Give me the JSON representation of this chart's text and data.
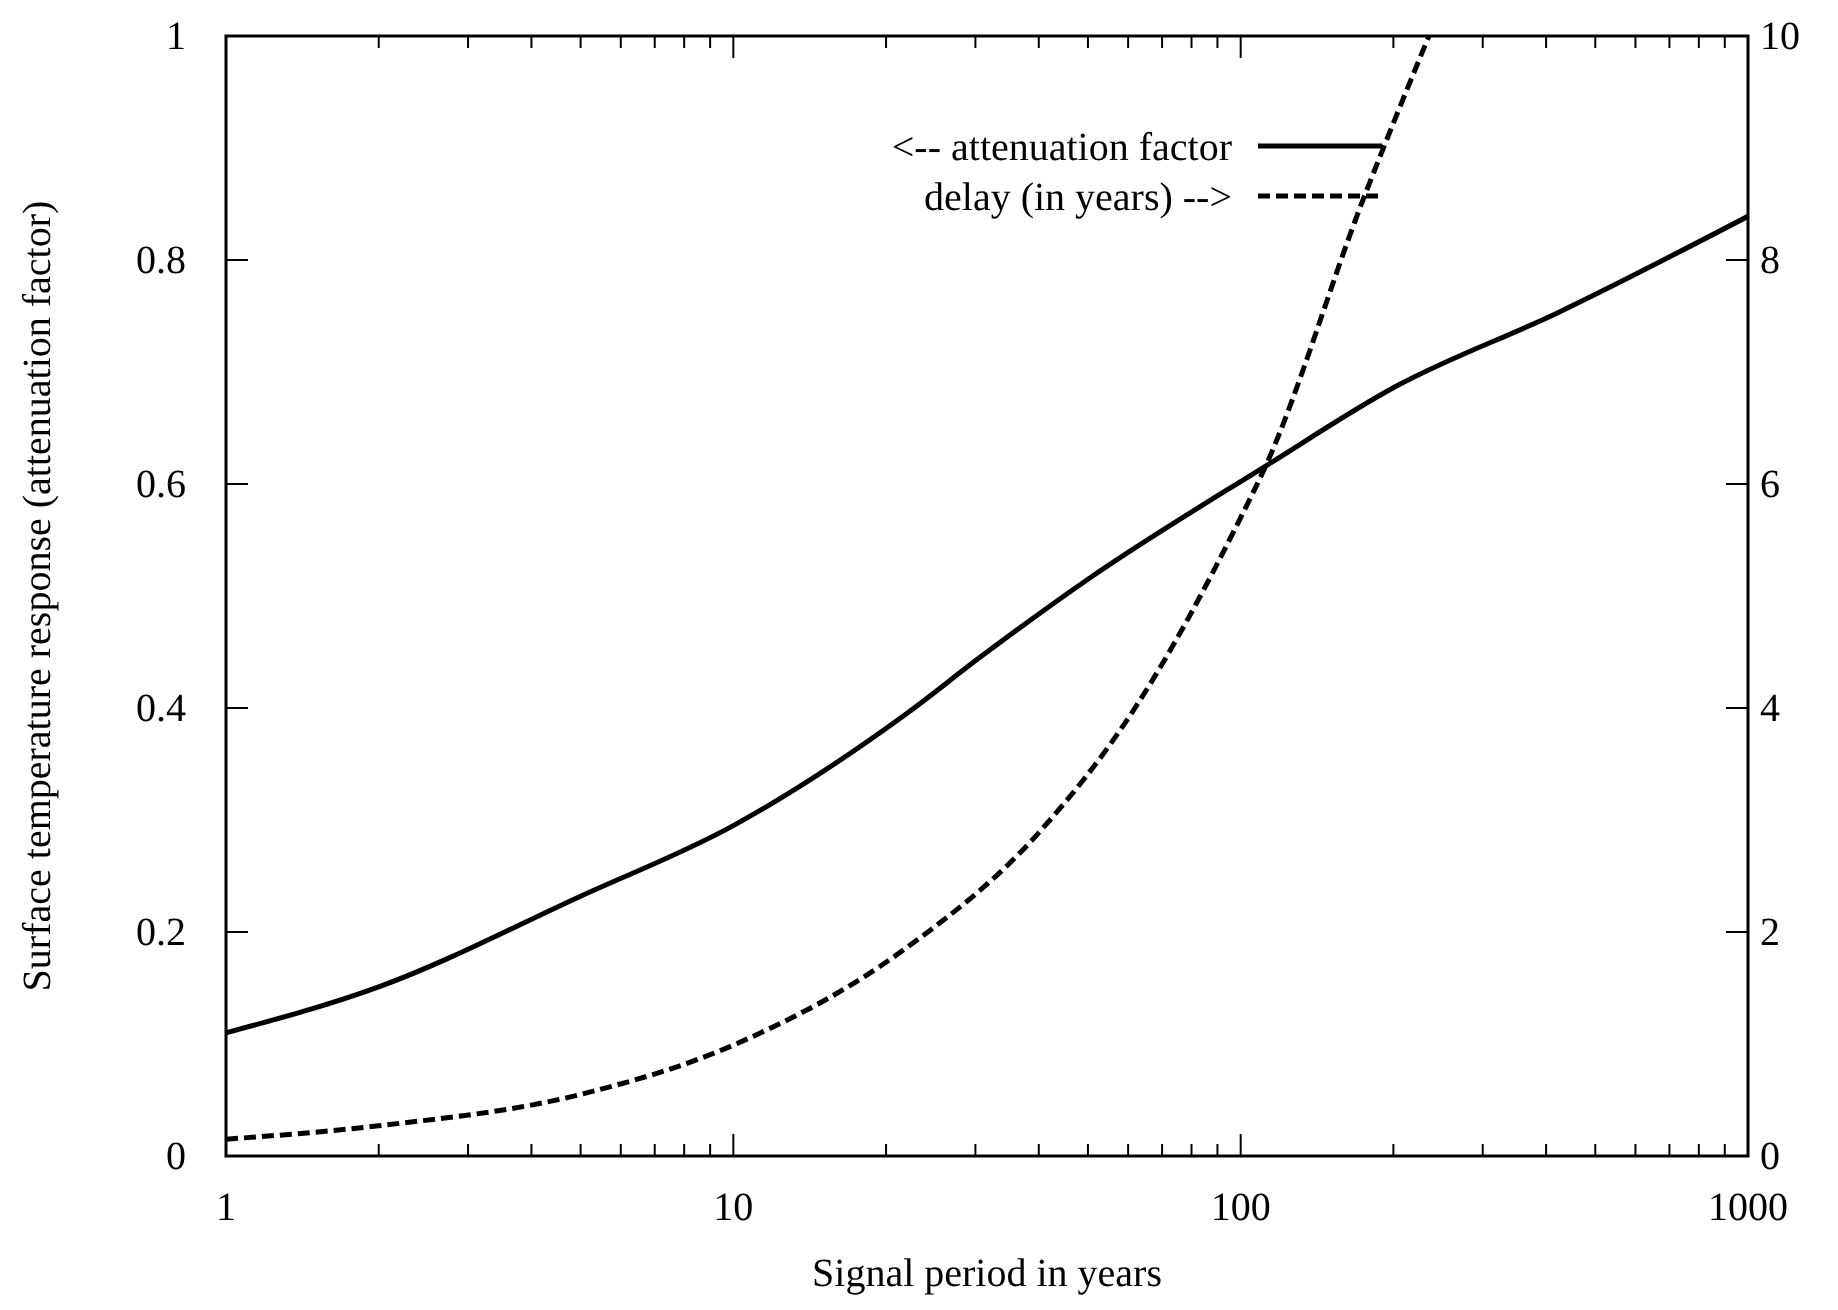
{
  "chart_data": {
    "type": "line",
    "xlabel": "Signal period in years",
    "ylabel": "Surface temperature response (attenuation factor)",
    "log": "x",
    "xlim": [
      1,
      1000
    ],
    "xticks": [
      1,
      {
        "value": 2,
        "label": null
      },
      {
        "value": 3,
        "label": null
      },
      {
        "value": 4,
        "label": null
      },
      {
        "value": 5,
        "label": null
      },
      {
        "value": 6,
        "label": null
      },
      {
        "value": 7,
        "label": null
      },
      {
        "value": 8,
        "label": null
      },
      {
        "value": 9,
        "label": null
      },
      10,
      {
        "value": 20,
        "label": null
      },
      {
        "value": 30,
        "label": null
      },
      {
        "value": 40,
        "label": null
      },
      {
        "value": 50,
        "label": null
      },
      {
        "value": 60,
        "label": null
      },
      {
        "value": 70,
        "label": null
      },
      {
        "value": 80,
        "label": null
      },
      {
        "value": 90,
        "label": null
      },
      100,
      {
        "value": 200,
        "label": null
      },
      {
        "value": 300,
        "label": null
      },
      {
        "value": 400,
        "label": null
      },
      {
        "value": 500,
        "label": null
      },
      {
        "value": 600,
        "label": null
      },
      {
        "value": 700,
        "label": null
      },
      {
        "value": 800,
        "label": null
      },
      {
        "value": 900,
        "label": null
      },
      1000
    ],
    "ylim": [
      0,
      1
    ],
    "yticks": [
      0,
      0.2,
      0.4,
      0.6,
      0.8,
      1
    ],
    "y2lim": [
      0,
      10
    ],
    "y2ticks": [
      0,
      2,
      4,
      6,
      8,
      10
    ],
    "grid": false,
    "legend": "top right",
    "series": [
      {
        "name": "<-- attenuation factor",
        "color": "#000000",
        "line_style": "solid",
        "x": [
          1,
          2,
          5,
          10,
          21.8,
          31,
          50,
          112,
          202,
          422,
          1000
        ],
        "values": [
          0.11,
          0.151,
          0.232,
          0.295,
          0.394,
          0.447,
          0.515,
          0.616,
          0.687,
          0.753,
          0.839
        ]
      },
      {
        "name": "delay (in years) -->",
        "color": "#000000",
        "line_style": "dashed",
        "axis": "y2",
        "x": [
          1,
          2,
          5,
          10,
          21.8,
          39.7,
          61.9,
          100,
          112,
          174,
          235
        ],
        "values": [
          0.15,
          0.27,
          0.55,
          0.99,
          1.85,
          2.87,
          4.0,
          5.7,
          6.16,
          8.53,
          10
        ]
      }
    ]
  }
}
